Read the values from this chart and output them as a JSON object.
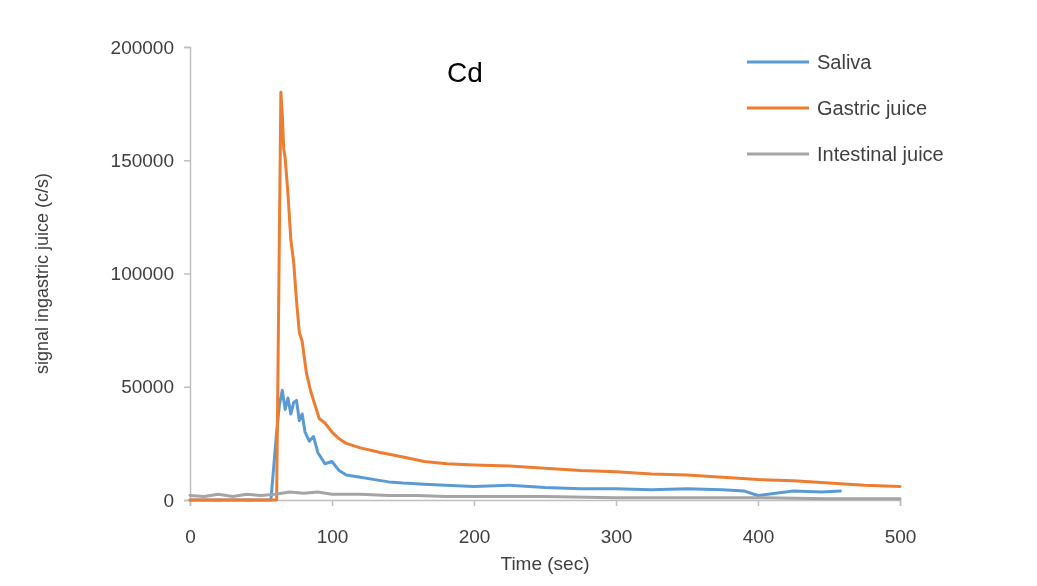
{
  "chart_data": {
    "type": "line",
    "title": "Cd",
    "xlabel": "Time (sec)",
    "ylabel": "signal ingastric juice (c/s)",
    "xlim": [
      0,
      500
    ],
    "xticks": [
      0,
      100,
      200,
      300,
      400,
      500
    ],
    "ylim": [
      0,
      200000
    ],
    "yticks": [
      0,
      50000,
      100000,
      150000,
      200000
    ],
    "grid": false,
    "legend": "top right",
    "marker": "none",
    "line_style": "solid",
    "series": [
      {
        "name": "Saliva",
        "color": "#5b9bd5",
        "x": [
          0,
          57,
          59,
          61,
          63,
          65,
          67,
          69,
          71,
          73,
          75,
          77,
          79,
          81,
          84,
          87,
          90,
          95,
          100,
          105,
          110,
          120,
          130,
          140,
          150,
          165,
          180,
          200,
          225,
          250,
          275,
          300,
          325,
          350,
          375,
          390,
          400,
          425,
          445,
          458
        ],
        "values": [
          0,
          0,
          15000,
          30000,
          42000,
          48500,
          40000,
          45000,
          38000,
          43000,
          44000,
          35000,
          38000,
          30000,
          26000,
          28000,
          21000,
          16000,
          17000,
          13000,
          11000,
          10000,
          9000,
          8000,
          7500,
          7000,
          6500,
          6000,
          6500,
          5500,
          5000,
          5000,
          4500,
          5000,
          4500,
          4000,
          2000,
          4000,
          3500,
          4000
        ]
      },
      {
        "name": "Gastric juice",
        "color": "#ed7d31",
        "x": [
          0,
          61,
          63,
          64,
          65,
          66,
          67,
          69,
          71,
          73,
          75,
          77,
          79,
          82,
          85,
          88,
          91,
          95,
          100,
          105,
          110,
          120,
          134,
          150,
          165,
          181,
          200,
          225,
          250,
          275,
          300,
          325,
          350,
          375,
          400,
          425,
          450,
          475,
          500
        ],
        "values": [
          0,
          0,
          120000,
          180000,
          170000,
          155000,
          151000,
          135000,
          115000,
          105000,
          88000,
          74000,
          70000,
          56000,
          48000,
          42000,
          36000,
          34000,
          30000,
          27000,
          25000,
          23000,
          21000,
          19000,
          17000,
          16000,
          15500,
          15000,
          14000,
          13000,
          12500,
          11500,
          11000,
          10000,
          9000,
          8500,
          7500,
          6500,
          6000
        ]
      },
      {
        "name": "Intestinal juice",
        "color": "#a5a5a5",
        "x": [
          0,
          10,
          20,
          30,
          40,
          50,
          60,
          70,
          80,
          90,
          100,
          120,
          140,
          160,
          180,
          200,
          250,
          300,
          350,
          400,
          450,
          500
        ],
        "values": [
          2000,
          1500,
          2500,
          1500,
          2500,
          2000,
          2500,
          3500,
          3000,
          3500,
          2500,
          2500,
          2000,
          2000,
          1500,
          1500,
          1500,
          1000,
          1000,
          1000,
          500,
          500
        ]
      }
    ]
  }
}
